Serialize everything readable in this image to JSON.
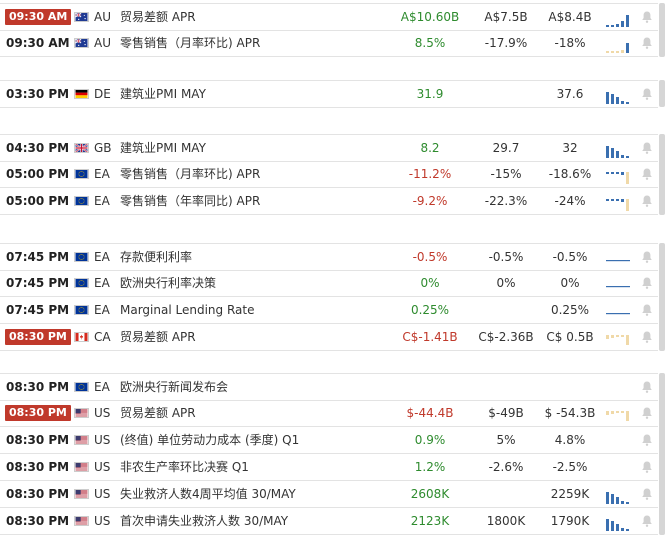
{
  "colors": {
    "accent_red": "#c0392b",
    "positive": "#2e8b2e",
    "negative": "#c0392b",
    "bar_blue": "#3a6fb0",
    "bar_tan": "#f0d9a8"
  },
  "groups": [
    {
      "rows": [
        {
          "time": "09:30 AM",
          "highlight": true,
          "flag": "au-flag-icon",
          "country": "AU",
          "title": "贸易差额 APR",
          "actual": "A$10.60B",
          "actual_color": "green",
          "forecast": "A$7.5B",
          "previous": "A$8.4B",
          "history_icon": "bars-blue-rising"
        },
        {
          "time": "09:30 AM",
          "highlight": false,
          "flag": "au-flag-icon",
          "country": "AU",
          "title": "零售销售（月率环比) APR",
          "actual": "8.5%",
          "actual_color": "green",
          "forecast": "-17.9%",
          "previous": "-18%",
          "history_icon": "bars-mixed"
        }
      ]
    },
    {
      "rows": [
        {
          "time": "03:30 PM",
          "highlight": false,
          "flag": "de-flag-icon",
          "country": "DE",
          "title": "建筑业PMI MAY",
          "actual": "31.9",
          "actual_color": "green",
          "forecast": "",
          "previous": "37.6",
          "history_icon": "bars-blue-falling"
        }
      ]
    },
    {
      "rows": [
        {
          "time": "04:30 PM",
          "highlight": false,
          "flag": "gb-flag-icon",
          "country": "GB",
          "title": "建筑业PMI MAY",
          "actual": "8.2",
          "actual_color": "green",
          "forecast": "29.7",
          "previous": "32",
          "history_icon": "bars-blue-falling"
        },
        {
          "time": "05:00 PM",
          "highlight": false,
          "flag": "eu-flag-icon",
          "country": "EA",
          "title": "零售销售（月率环比) APR",
          "actual": "-11.2%",
          "actual_color": "red",
          "forecast": "-15%",
          "previous": "-18.6%",
          "history_icon": "bars-tan-dip"
        },
        {
          "time": "05:00 PM",
          "highlight": false,
          "flag": "eu-flag-icon",
          "country": "EA",
          "title": "零售销售（年率同比) APR",
          "actual": "-9.2%",
          "actual_color": "red",
          "forecast": "-22.3%",
          "previous": "-24%",
          "history_icon": "bars-tan-dip"
        }
      ]
    },
    {
      "rows": [
        {
          "time": "07:45 PM",
          "highlight": false,
          "flag": "eu-flag-icon",
          "country": "EA",
          "title": "存款便利利率",
          "actual": "-0.5%",
          "actual_color": "red",
          "forecast": "-0.5%",
          "previous": "-0.5%",
          "history_icon": "flat-line"
        },
        {
          "time": "07:45 PM",
          "highlight": false,
          "flag": "eu-flag-icon",
          "country": "EA",
          "title": "欧洲央行利率决策",
          "actual": "0%",
          "actual_color": "green",
          "forecast": "0%",
          "previous": "0%",
          "history_icon": "flat-line"
        },
        {
          "time": "07:45 PM",
          "highlight": false,
          "flag": "eu-flag-icon",
          "country": "EA",
          "title": "Marginal Lending Rate",
          "actual": "0.25%",
          "actual_color": "green",
          "forecast": "",
          "previous": "0.25%",
          "history_icon": "flat-line"
        },
        {
          "time": "08:30 PM",
          "highlight": true,
          "flag": "ca-flag-icon",
          "country": "CA",
          "title": "贸易差额 APR",
          "actual": "C$-1.41B",
          "actual_color": "red",
          "forecast": "C$-2.36B",
          "previous": "C$ 0.5B",
          "history_icon": "bars-tan"
        }
      ]
    },
    {
      "rows": [
        {
          "time": "08:30 PM",
          "highlight": false,
          "flag": "eu-flag-icon",
          "country": "EA",
          "title": "欧洲央行新闻发布会",
          "actual": "",
          "actual_color": "green",
          "forecast": "",
          "previous": "",
          "history_icon": "none"
        },
        {
          "time": "08:30 PM",
          "highlight": true,
          "flag": "us-flag-icon",
          "country": "US",
          "title": "贸易差额 APR",
          "actual": "$-44.4B",
          "actual_color": "red",
          "forecast": "$-49B",
          "previous": "$ -54.3B",
          "history_icon": "bars-tan"
        },
        {
          "time": "08:30 PM",
          "highlight": false,
          "flag": "us-flag-icon",
          "country": "US",
          "title": "(终值) 单位劳动力成本 (季度) Q1",
          "actual": "0.9%",
          "actual_color": "green",
          "forecast": "5%",
          "previous": "4.8%",
          "history_icon": "none"
        },
        {
          "time": "08:30 PM",
          "highlight": false,
          "flag": "us-flag-icon",
          "country": "US",
          "title": "非农生产率环比决赛 Q1",
          "actual": "1.2%",
          "actual_color": "green",
          "forecast": "-2.6%",
          "previous": "-2.5%",
          "history_icon": "none"
        },
        {
          "time": "08:30 PM",
          "highlight": false,
          "flag": "us-flag-icon",
          "country": "US",
          "title": "失业救济人数4周平均值 30/MAY",
          "actual": "2608K",
          "actual_color": "green",
          "forecast": "",
          "previous": "2259K",
          "history_icon": "bars-blue-falling"
        },
        {
          "time": "08:30 PM",
          "highlight": false,
          "flag": "us-flag-icon",
          "country": "US",
          "title": "首次申请失业救济人数 30/MAY",
          "actual": "2123K",
          "actual_color": "green",
          "forecast": "1800K",
          "previous": "1790K",
          "history_icon": "bars-blue-falling"
        }
      ]
    }
  ]
}
